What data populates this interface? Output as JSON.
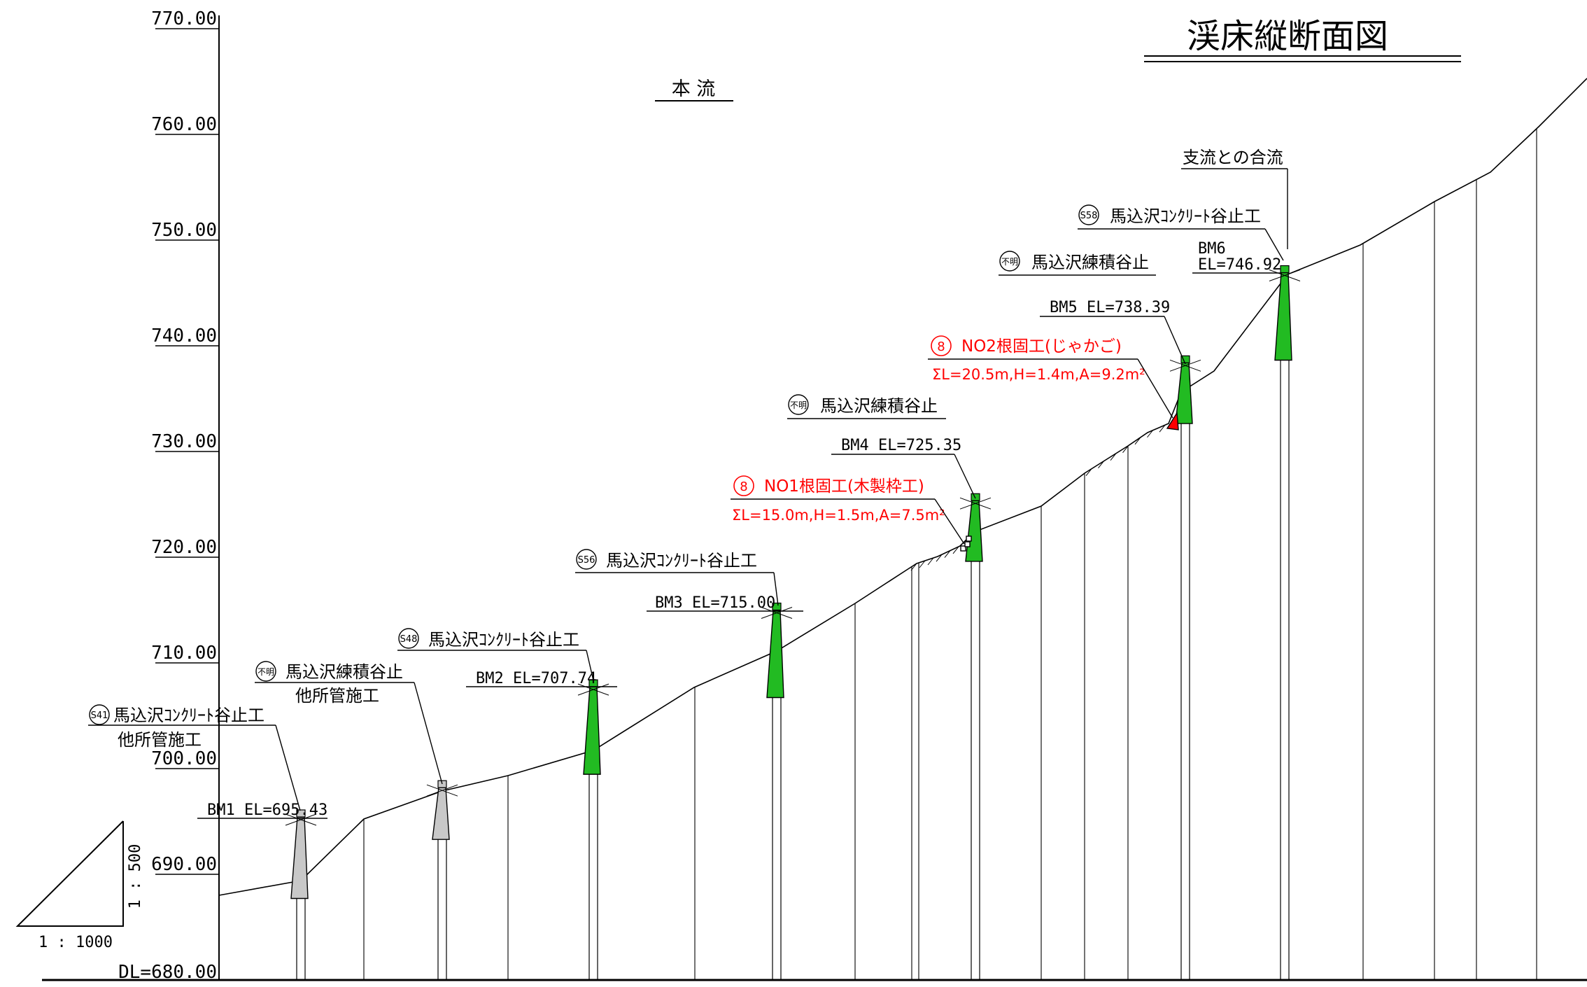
{
  "title": "渓床縦断面図",
  "stream_label": "本 流",
  "datum_label": "DL=680.00",
  "elevation_axis": {
    "min": 680,
    "max": 770,
    "ticks": [
      "770.00",
      "760.00",
      "750.00",
      "740.00",
      "730.00",
      "720.00",
      "710.00",
      "700.00",
      "690.00"
    ]
  },
  "scale": {
    "horizontal": "1 : 1000",
    "vertical": "1 : 500"
  },
  "confluence_label": "支流との合流",
  "structures": [
    {
      "badge": "S41",
      "name": "馬込沢ｺﾝｸﾘｰﾄ谷止工",
      "note": "他所管施工",
      "bm": "BM1 EL=695.43",
      "top_el": 695.43,
      "color": "#c8c8c8"
    },
    {
      "badge": "不明",
      "name": "馬込沢練積谷止",
      "note": "他所管施工",
      "bm": "",
      "top_el": 698.2,
      "color": "#c8c8c8"
    },
    {
      "badge": "S48",
      "name": "馬込沢ｺﾝｸﾘｰﾄ谷止工",
      "note": "",
      "bm": "BM2 EL=707.74",
      "top_el": 707.74,
      "color": "#22bb22"
    },
    {
      "badge": "S56",
      "name": "馬込沢ｺﾝｸﾘｰﾄ谷止工",
      "note": "",
      "bm": "BM3 EL=715.00",
      "top_el": 715.0,
      "color": "#22bb22"
    },
    {
      "badge": "不明",
      "name": "馬込沢練積谷止",
      "note": "",
      "bm": "BM4 EL=725.35",
      "top_el": 725.35,
      "color": "#22bb22"
    },
    {
      "badge": "不明",
      "name": "馬込沢練積谷止",
      "note": "",
      "bm": "BM5 EL=738.39",
      "top_el": 738.39,
      "color": "#22bb22"
    },
    {
      "badge": "S58",
      "name": "馬込沢ｺﾝｸﾘｰﾄ谷止工",
      "note": "",
      "bm_line1": "BM6",
      "bm_line2": "EL=746.92",
      "top_el": 746.92,
      "color": "#22bb22"
    }
  ],
  "root_works": [
    {
      "number": "8",
      "title": "NO1根固工(木製枠工)",
      "spec": "ΣL=15.0m,H=1.5m,A=7.5m²",
      "color": "#ff0000"
    },
    {
      "number": "8",
      "title": "NO2根固工(じゃかご)",
      "spec": "ΣL=20.5m,H=1.4m,A=9.2m²",
      "color": "#ff0000"
    }
  ]
}
